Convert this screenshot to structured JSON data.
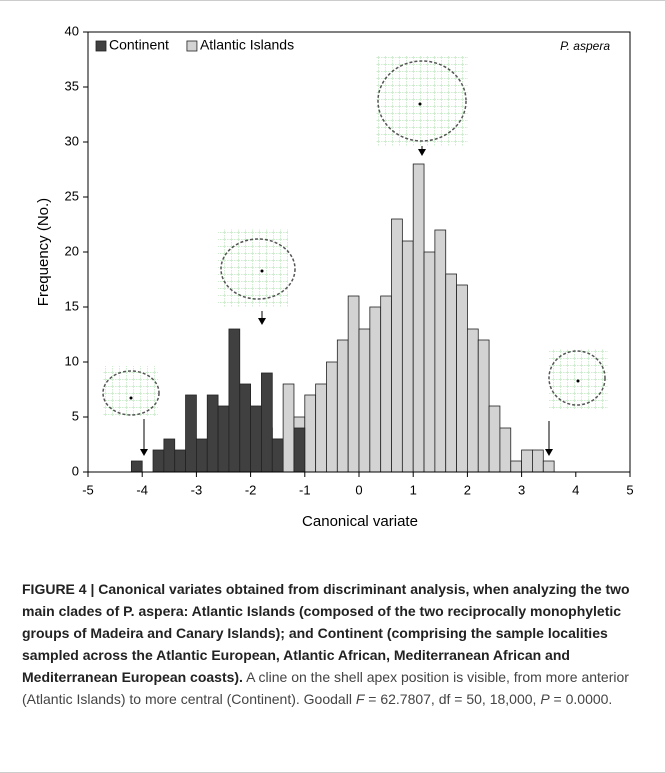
{
  "chart_data": {
    "type": "histogram",
    "annotation": "P. aspera",
    "xlabel": "Canonical variate",
    "ylabel": "Frequency (No.)",
    "bins": [
      -4.2,
      -4,
      -3.8,
      -3.6,
      -3.4,
      -3.2,
      -3,
      -2.8,
      -2.6,
      -2.4,
      -2.2,
      -2,
      -1.8,
      -1.6,
      -1.4,
      -1.2,
      -1,
      -0.8,
      -0.6,
      -0.4,
      -0.2,
      0,
      0.2,
      0.4,
      0.6,
      0.8,
      1,
      1.2,
      1.4,
      1.6,
      1.8,
      2,
      2.2,
      2.4,
      2.6,
      2.8,
      3,
      3.2,
      3.4,
      3.6
    ],
    "series": [
      {
        "name": "Continent",
        "color": "#404040",
        "values": [
          1,
          0,
          2,
          3,
          2,
          7,
          3,
          7,
          6,
          13,
          8,
          6,
          9,
          3,
          0,
          4,
          0,
          0,
          0,
          0,
          0,
          0,
          0,
          0,
          0,
          0,
          0,
          0,
          0,
          0,
          0,
          0,
          0,
          0,
          0,
          0,
          0,
          0,
          0
        ]
      },
      {
        "name": "Atlantic Islands",
        "color": "#d3d3d3",
        "values": [
          0,
          0,
          0,
          0,
          0,
          0,
          0,
          0,
          0,
          1,
          2,
          5,
          4,
          3,
          8,
          5,
          7,
          8,
          10,
          12,
          16,
          13,
          15,
          16,
          23,
          21,
          28,
          20,
          22,
          18,
          17,
          13,
          12,
          6,
          4,
          1,
          2,
          2,
          1
        ]
      }
    ],
    "xlim": [
      -5,
      5
    ],
    "xticks": [
      -5,
      -4,
      -3,
      -2,
      -1,
      0,
      1,
      2,
      3,
      4,
      5
    ],
    "ylim": [
      0,
      40
    ],
    "yticks": [
      0,
      5,
      10,
      15,
      20,
      25,
      30,
      35,
      40
    ],
    "legend": "top-left"
  },
  "caption": {
    "bold": "FIGURE 4 | Canonical variates obtained from discriminant analysis, when analyzing the two main clades of P. aspera: Atlantic Islands (composed of the two reciprocally monophyletic groups of Madeira and Canary Islands); and Continent (comprising the sample localities sampled across the Atlantic European, Atlantic African, Mediterranean African and Mediterranean European coasts).",
    "text": [
      " A cline on the shell apex position is visible, from more anterior (Atlantic Islands) to more central (Continent). Goodall ",
      "F",
      " = 62.7807, df = 50, 18,000, ",
      "P",
      " = 0.0000."
    ]
  }
}
